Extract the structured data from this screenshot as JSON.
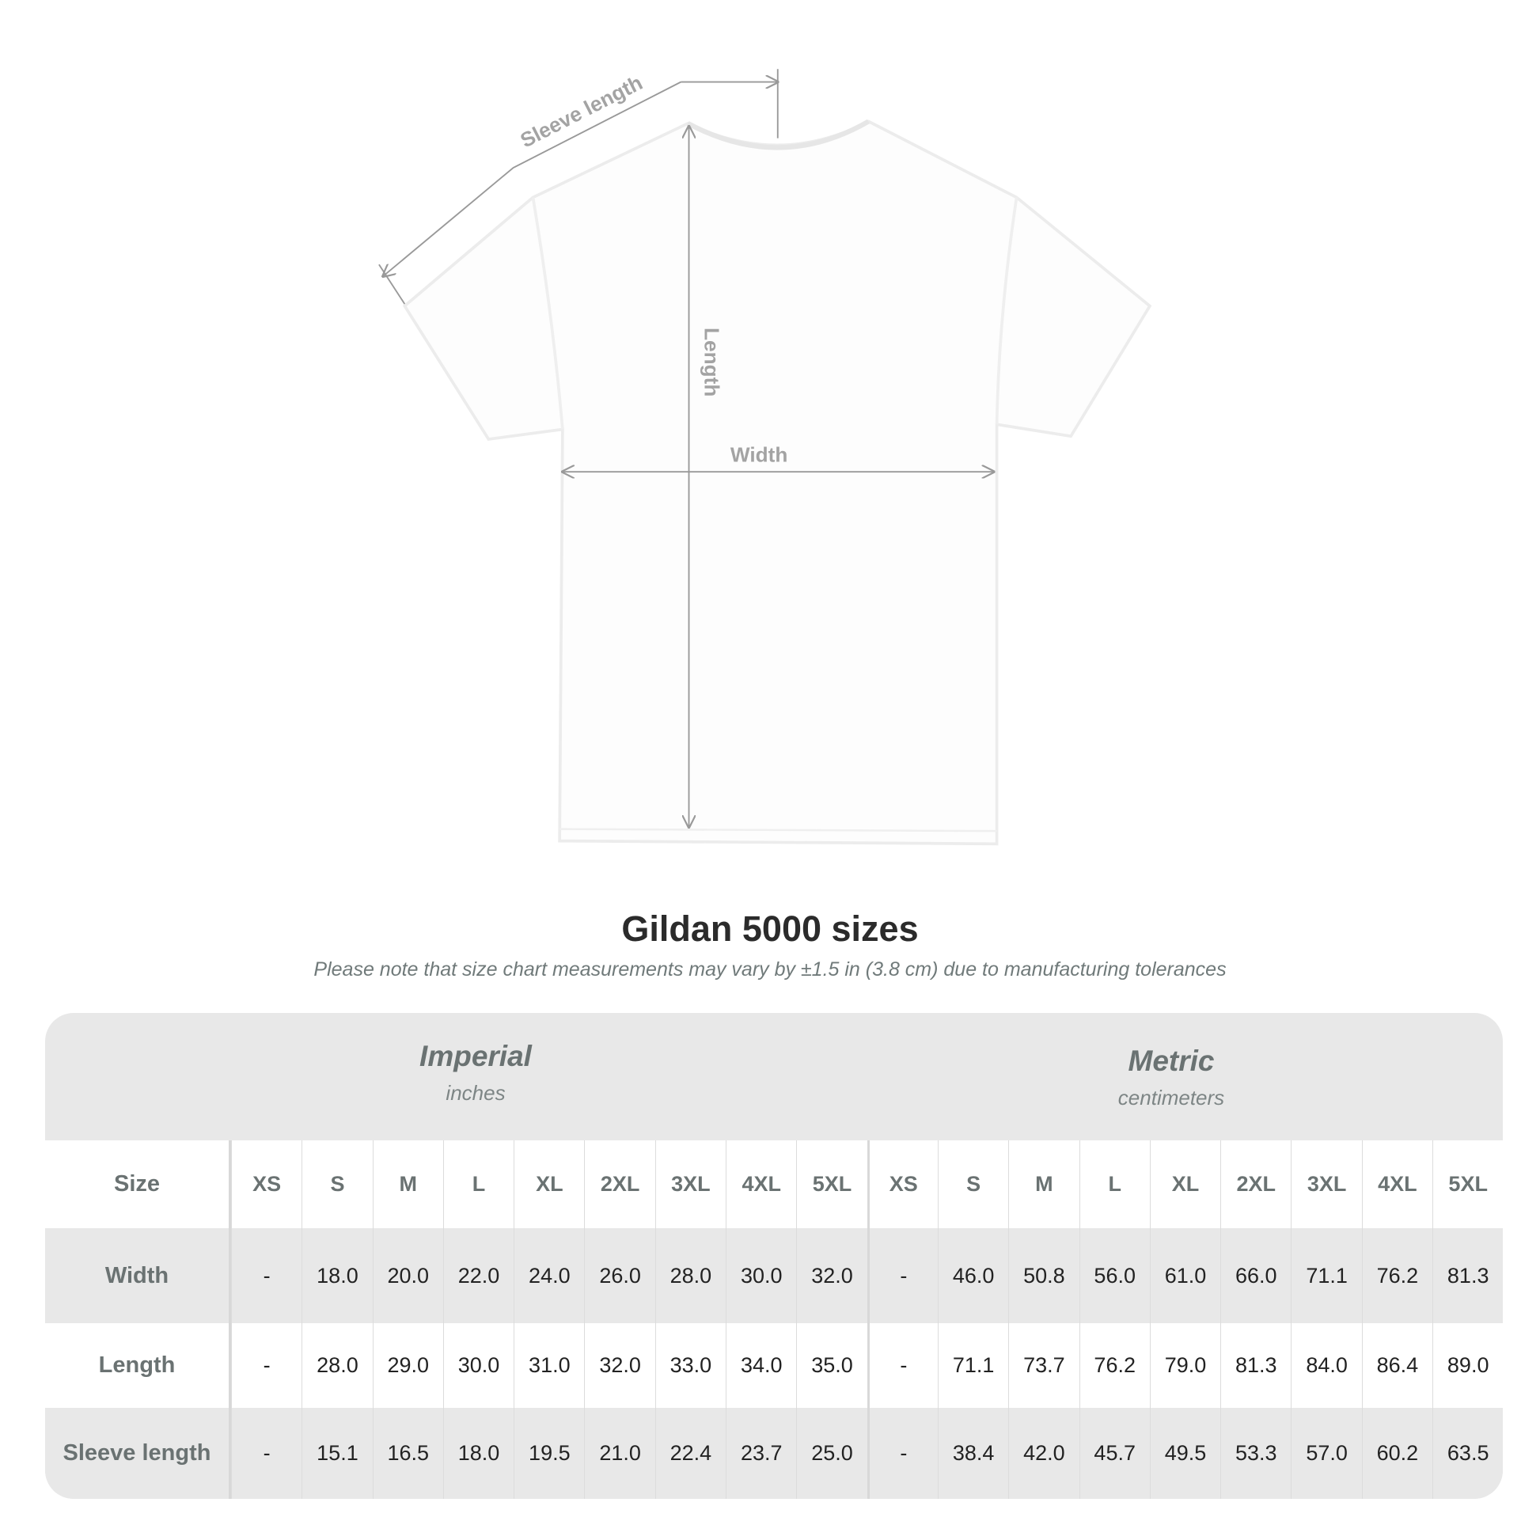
{
  "diagram": {
    "labels": {
      "sleeve_length": "Sleeve length",
      "length": "Length",
      "width": "Width"
    }
  },
  "title": "Gildan 5000 sizes",
  "note": "Please note that size chart measurements may vary by ±1.5 in (3.8 cm) due to manufacturing tolerances",
  "table": {
    "imperial": {
      "name": "Imperial",
      "unit": "inches"
    },
    "metric": {
      "name": "Metric",
      "unit": "centimeters"
    },
    "size_label": "Size",
    "sizes": [
      "XS",
      "S",
      "M",
      "L",
      "XL",
      "2XL",
      "3XL",
      "4XL",
      "5XL"
    ],
    "rows": [
      {
        "label": "Width",
        "imperial": [
          "-",
          "18.0",
          "20.0",
          "22.0",
          "24.0",
          "26.0",
          "28.0",
          "30.0",
          "32.0"
        ],
        "metric": [
          "-",
          "46.0",
          "50.8",
          "56.0",
          "61.0",
          "66.0",
          "71.1",
          "76.2",
          "81.3"
        ]
      },
      {
        "label": "Length",
        "imperial": [
          "-",
          "28.0",
          "29.0",
          "30.0",
          "31.0",
          "32.0",
          "33.0",
          "34.0",
          "35.0"
        ],
        "metric": [
          "-",
          "71.1",
          "73.7",
          "76.2",
          "79.0",
          "81.3",
          "84.0",
          "86.4",
          "89.0"
        ]
      },
      {
        "label": "Sleeve length",
        "imperial": [
          "-",
          "15.1",
          "16.5",
          "18.0",
          "19.5",
          "21.0",
          "22.4",
          "23.7",
          "25.0"
        ],
        "metric": [
          "-",
          "38.4",
          "42.0",
          "45.7",
          "49.5",
          "53.3",
          "57.0",
          "60.2",
          "63.5"
        ]
      }
    ]
  }
}
